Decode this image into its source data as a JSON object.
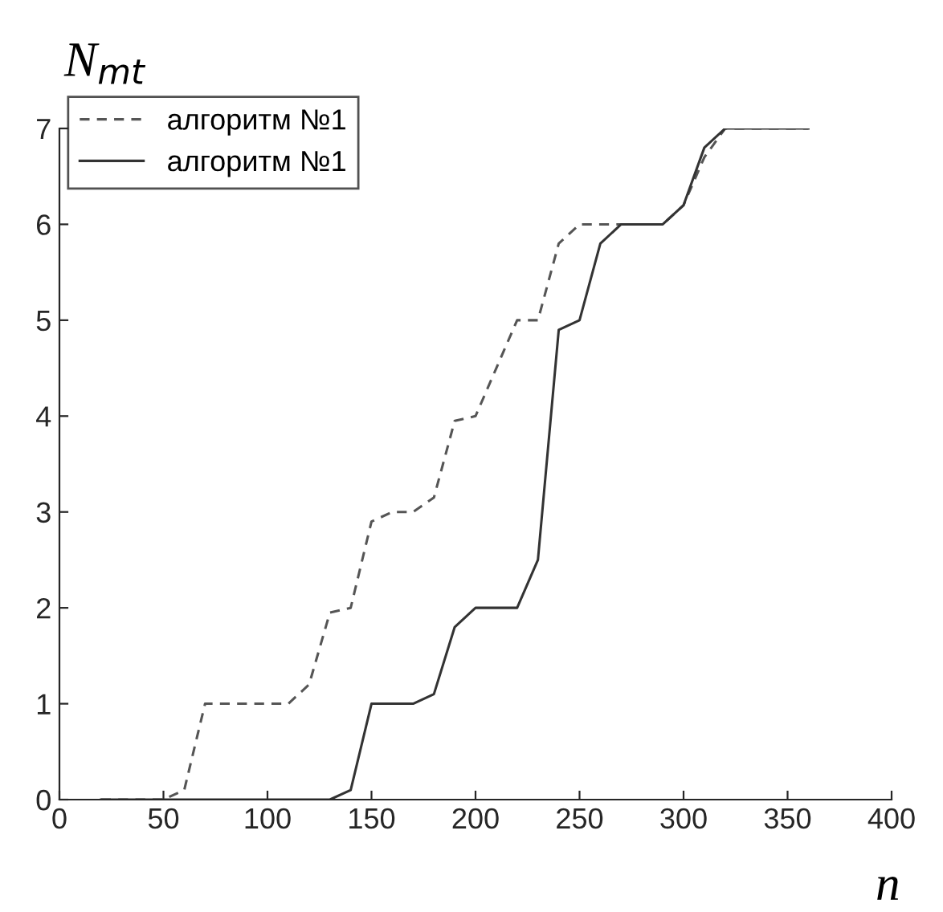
{
  "chart_data": {
    "type": "line",
    "xlabel": "n",
    "ylabel": "N$_{mt}$",
    "x": [
      20,
      30,
      40,
      50,
      60,
      70,
      80,
      90,
      100,
      110,
      120,
      130,
      140,
      150,
      160,
      170,
      180,
      190,
      200,
      210,
      220,
      230,
      240,
      250,
      260,
      270,
      280,
      290,
      300,
      310,
      320,
      330,
      340,
      350,
      360
    ],
    "series": [
      {
        "name": "алгоритм №1",
        "color": "#555555",
        "line_style": "dashed",
        "values": [
          0,
          0,
          0,
          0,
          0.1,
          1,
          1,
          1,
          1,
          1,
          1.2,
          1.95,
          2,
          2.9,
          3,
          3,
          3.15,
          3.95,
          4,
          4.5,
          5,
          5,
          5.8,
          6,
          6,
          6,
          6,
          6,
          6.2,
          6.7,
          7,
          7,
          7,
          7,
          7
        ]
      },
      {
        "name": "алгоритм №1",
        "color": "#333333",
        "line_style": "solid",
        "values": [
          0,
          0,
          0,
          0,
          0,
          0,
          0,
          0,
          0,
          0,
          0,
          0,
          0.1,
          1,
          1,
          1,
          1.1,
          1.8,
          2,
          2,
          2,
          2.5,
          4.9,
          5,
          5.8,
          6,
          6,
          6,
          6.2,
          6.8,
          7,
          7,
          7,
          7,
          7
        ]
      }
    ],
    "xlim": [
      0,
      400
    ],
    "ylim": [
      0,
      7
    ],
    "xticks": [
      0,
      50,
      100,
      150,
      200,
      250,
      300,
      350,
      400
    ],
    "yticks": [
      0,
      1,
      2,
      3,
      4,
      5,
      6,
      7
    ],
    "grid": false,
    "legend": "top left",
    "marker": "none"
  }
}
